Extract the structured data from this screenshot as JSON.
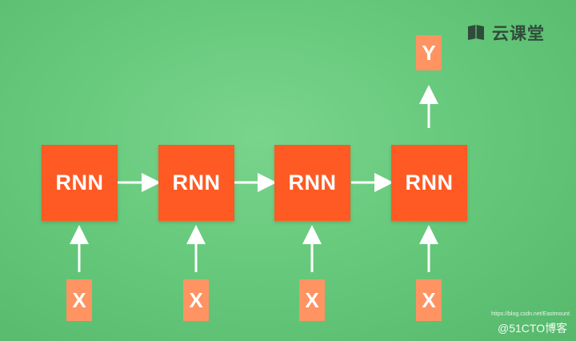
{
  "brand": {
    "name": "云课堂",
    "icon": "book-icon"
  },
  "nodes": [
    {
      "label": "RNN"
    },
    {
      "label": "RNN"
    },
    {
      "label": "RNN"
    },
    {
      "label": "RNN"
    }
  ],
  "inputs": [
    {
      "label": "X"
    },
    {
      "label": "X"
    },
    {
      "label": "X"
    },
    {
      "label": "X"
    }
  ],
  "output": {
    "label": "Y"
  },
  "watermark": {
    "url": "https://blog.csdn.net/Eastmount",
    "text": "@51CTO博客"
  },
  "colors": {
    "background": "#67c97c",
    "node": "#ff5a23",
    "io_box": "#ff9462",
    "arrow": "#ffffff"
  }
}
